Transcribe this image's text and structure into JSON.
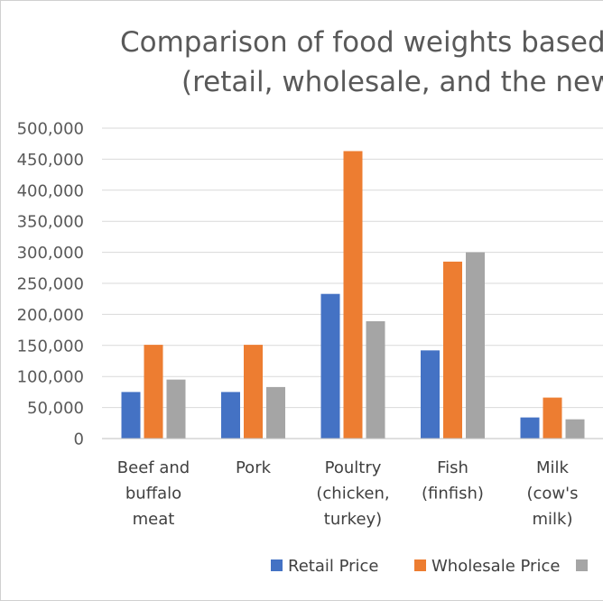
{
  "chart_data": {
    "type": "bar",
    "title_lines": [
      "Comparison of food weights based on",
      "(retail, wholesale, and the new"
    ],
    "categories": [
      [
        "Beef and",
        "buffalo",
        "meat"
      ],
      [
        "Pork"
      ],
      [
        "Poultry",
        "(chicken,",
        "turkey)"
      ],
      [
        "Fish",
        "(finfish)"
      ],
      [
        "Milk",
        "(cow's",
        "milk)"
      ]
    ],
    "series": [
      {
        "name": "Retail Price",
        "color": "#4472C4",
        "values": [
          75000,
          75000,
          233000,
          142000,
          34000
        ]
      },
      {
        "name": "Wholesale Price",
        "color": "#ED7D31",
        "values": [
          151000,
          151000,
          463000,
          285000,
          66000
        ]
      },
      {
        "name": "",
        "color": "#A5A5A5",
        "values": [
          95000,
          83000,
          189000,
          300000,
          31000
        ]
      }
    ],
    "ylim": [
      0,
      500000
    ],
    "y_ticks": [
      "0",
      "50,000",
      "100,000",
      "150,000",
      "200,000",
      "250,000",
      "300,000",
      "350,000",
      "400,000",
      "450,000",
      "500,000"
    ],
    "grid": true,
    "legend_position": "bottom"
  }
}
